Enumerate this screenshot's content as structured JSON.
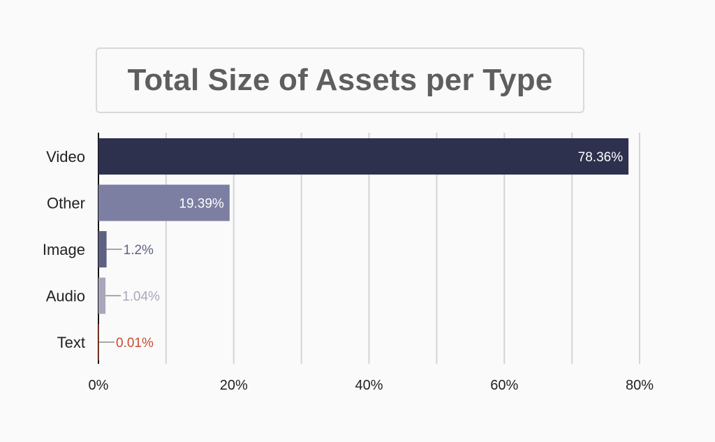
{
  "chart_data": {
    "type": "bar",
    "orientation": "horizontal",
    "title": "Total Size of Assets per Type",
    "xlabel": "",
    "ylabel": "",
    "categories": [
      "Video",
      "Other",
      "Image",
      "Audio",
      "Text"
    ],
    "values": [
      78.36,
      19.39,
      1.2,
      1.04,
      0.01
    ],
    "value_labels": [
      "78.36%",
      "19.39%",
      "1.2%",
      "1.04%",
      "0.01%"
    ],
    "bar_colors": [
      "#2e314e",
      "#7c7fa2",
      "#5d6182",
      "#a9a6ba",
      "#c94b2e"
    ],
    "label_colors": [
      "#ffffff",
      "#ffffff",
      "#5d6182",
      "#a9a6ba",
      "#c94b2e"
    ],
    "label_inside": [
      true,
      true,
      false,
      false,
      false
    ],
    "xlim": [
      0,
      80
    ],
    "xticks": [
      0,
      20,
      40,
      60,
      80
    ],
    "xtick_labels": [
      "0%",
      "20%",
      "40%",
      "60%",
      "80%"
    ],
    "grid": true,
    "legend": "none"
  }
}
